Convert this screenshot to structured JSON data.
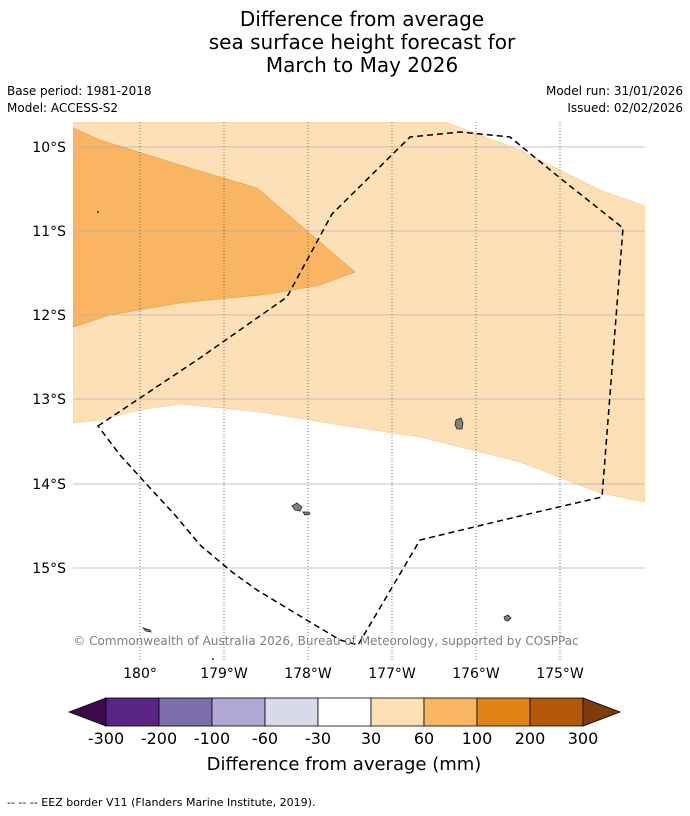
{
  "title": {
    "line1": "Difference from average",
    "line2": "sea surface height forecast for",
    "line3": "March to May 2026"
  },
  "meta": {
    "base_period": "Base period: 1981-2018",
    "model": "Model: ACCESS-S2",
    "model_run": "Model run: 31/01/2026",
    "issued": "Issued: 02/02/2026"
  },
  "map": {
    "lat_labels": [
      "10°S",
      "11°S",
      "12°S",
      "13°S",
      "14°S",
      "15°S"
    ],
    "lon_labels": [
      "180°",
      "179°W",
      "178°W",
      "177°W",
      "176°W",
      "175°W"
    ],
    "credit": "© Commonwealth of Australia 2026, Bureau of Meteorology, supported by COSPPac",
    "colors": {
      "band_30_60": "#fde0b6",
      "band_60_100": "#f9b562",
      "land": "#808080"
    }
  },
  "colorbar": {
    "title": "Difference from average (mm)",
    "tick_labels": [
      "-300",
      "-200",
      "-100",
      "-60",
      "-30",
      "30",
      "60",
      "100",
      "200",
      "300"
    ],
    "colors": [
      "#3f0a4c",
      "#5b2487",
      "#7d6eab",
      "#b0a8d2",
      "#d9d9ec",
      "#ffffff",
      "#fde0b6",
      "#f9b562",
      "#e08214",
      "#b35806",
      "#7f3b08"
    ]
  },
  "footnote": "-- -- -- EEZ border V11 (Flanders Marine Institute, 2019)."
}
